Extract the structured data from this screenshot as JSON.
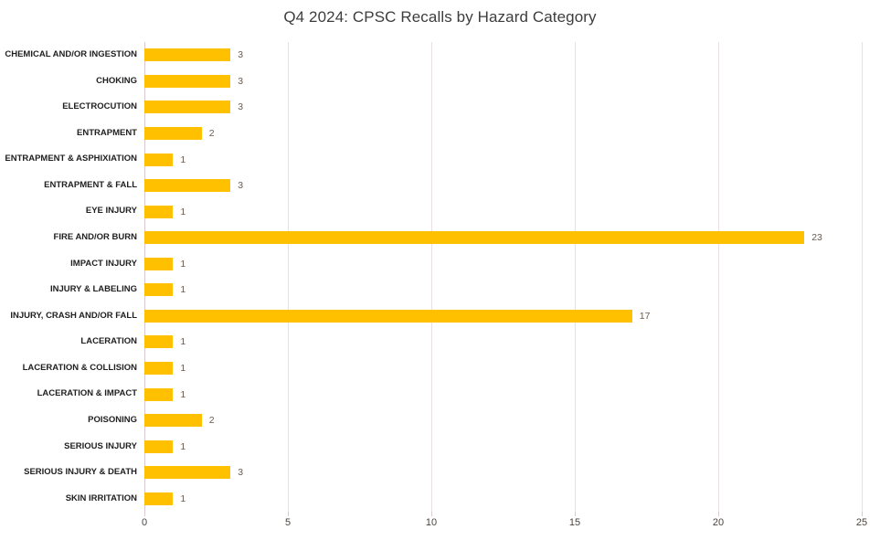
{
  "chart_data": {
    "type": "bar",
    "orientation": "horizontal",
    "title": "Q4 2024: CPSC Recalls by Hazard Category",
    "categories": [
      "CHEMICAL AND/OR INGESTION",
      "CHOKING",
      "ELECTROCUTION",
      "ENTRAPMENT",
      "ENTRAPMENT & ASPHIXIATION",
      "ENTRAPMENT & FALL",
      "EYE INJURY",
      "FIRE AND/OR BURN",
      "IMPACT INJURY",
      "INJURY & LABELING",
      "INJURY, CRASH AND/OR FALL",
      "LACERATION",
      "LACERATION & COLLISION",
      "LACERATION & IMPACT",
      "POISONING",
      "SERIOUS INJURY",
      "SERIOUS INJURY & DEATH",
      "SKIN IRRITATION"
    ],
    "values": [
      3,
      3,
      3,
      2,
      1,
      3,
      1,
      23,
      1,
      1,
      17,
      1,
      1,
      1,
      2,
      1,
      3,
      1
    ],
    "xlabel": "",
    "ylabel": "",
    "xlim": [
      0,
      25
    ],
    "x_ticks": [
      "0",
      "5",
      "10",
      "15",
      "20",
      "25"
    ],
    "grid": "vertical-only",
    "legend": "none",
    "data_labels": true
  },
  "colors": {
    "bar": "#ffc000",
    "gridline": "#ecdee4",
    "axis_line": "#d9cad1",
    "value_label": "#6a5c51",
    "category_label": "#1f1f1f",
    "tick_label": "#4a433e",
    "title": "#3d3d3d",
    "background": "#ffffff"
  }
}
